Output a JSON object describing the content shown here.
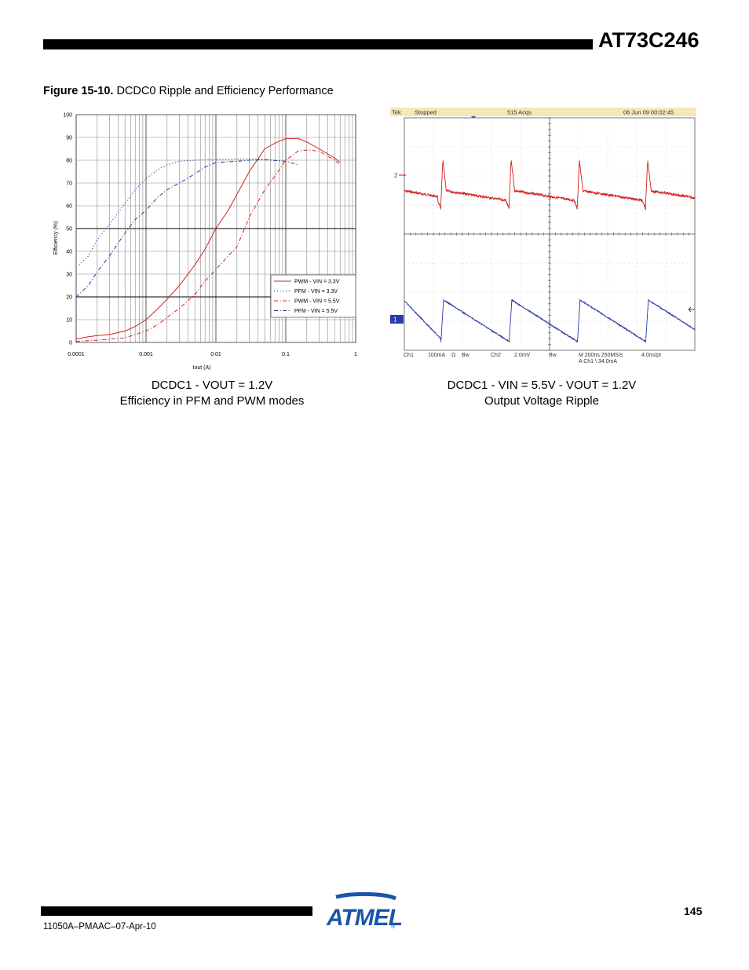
{
  "header": {
    "title": "AT73C246"
  },
  "figure": {
    "label": "Figure 15-10.",
    "title": "DCDC0 Ripple and Efficiency Performance",
    "left_caption": [
      "DCDC1 - VOUT = 1.2V",
      "Efficiency in PFM and PWM modes"
    ],
    "right_caption": [
      "DCDC1 - VIN = 5.5V - VOUT = 1.2V",
      "Output Voltage Ripple"
    ]
  },
  "chart_data": [
    {
      "type": "line",
      "title": "",
      "xlabel": "Iout (A)",
      "ylabel": "Efficiency (%)",
      "x_scale": "log",
      "xlim": [
        0.0001,
        1
      ],
      "ylim": [
        0,
        100
      ],
      "x_tick_labels": [
        "0.0001",
        "0.001",
        "0.01",
        "0.1",
        "1"
      ],
      "y_tick_labels": [
        "0",
        "10",
        "20",
        "30",
        "40",
        "50",
        "60",
        "70",
        "80",
        "90",
        "100"
      ],
      "grid": true,
      "legend_position": "bottom-right",
      "series": [
        {
          "name": "PWM - VIN = 3.3V",
          "color": "#d42020",
          "dash": "solid",
          "x": [
            0.0001,
            0.00015,
            0.0002,
            0.0003,
            0.0005,
            0.0007,
            0.001,
            0.0015,
            0.002,
            0.003,
            0.005,
            0.007,
            0.01,
            0.015,
            0.02,
            0.03,
            0.05,
            0.07,
            0.1,
            0.15,
            0.2,
            0.3,
            0.5,
            0.6
          ],
          "y": [
            1.5,
            2.5,
            3,
            3.5,
            5,
            7,
            10,
            15,
            19,
            25,
            34,
            41,
            50,
            58,
            65,
            75,
            85,
            87.5,
            89.5,
            89.5,
            88,
            85,
            81,
            79
          ]
        },
        {
          "name": "PFM - VIN = 3.3V",
          "color": "#2a3a9a",
          "dash": "dot",
          "x": [
            0.00011,
            0.00015,
            0.0002,
            0.0003,
            0.0005,
            0.0007,
            0.001,
            0.0015,
            0.002,
            0.003,
            0.005,
            0.007,
            0.01,
            0.02,
            0.03,
            0.05,
            0.1
          ],
          "y": [
            34,
            38,
            45,
            52,
            61,
            67,
            72,
            76,
            78,
            79.5,
            80,
            80.2,
            80.3,
            80.5,
            80.5,
            80.4,
            79.5
          ]
        },
        {
          "name": "PWM - VIN = 5.5V",
          "color": "#d42020",
          "dash": "dashdot",
          "x": [
            0.0001,
            0.0002,
            0.0005,
            0.001,
            0.0015,
            0.002,
            0.003,
            0.005,
            0.007,
            0.01,
            0.015,
            0.02,
            0.03,
            0.05,
            0.07,
            0.1,
            0.15,
            0.2,
            0.3,
            0.5,
            0.6
          ],
          "y": [
            0.5,
            1,
            2,
            5,
            8,
            11,
            15,
            21,
            27,
            32,
            38,
            42,
            55,
            67,
            73,
            80,
            84,
            84.5,
            84,
            80,
            78
          ]
        },
        {
          "name": "PFM - VIN = 5.5V",
          "color": "#2a3a9a",
          "dash": "dashdot",
          "x": [
            0.0001,
            0.00015,
            0.0002,
            0.0003,
            0.0005,
            0.0007,
            0.001,
            0.0015,
            0.002,
            0.003,
            0.005,
            0.007,
            0.01,
            0.02,
            0.03,
            0.05,
            0.1,
            0.15
          ],
          "y": [
            20,
            25,
            31,
            38,
            48,
            54,
            58,
            64,
            67,
            70,
            74,
            77,
            79,
            79.5,
            80,
            80.2,
            79.5,
            78
          ]
        }
      ]
    },
    {
      "type": "line",
      "title": "",
      "status": {
        "brand": "Tek",
        "state": "Stopped",
        "acqs": "515 Acqs",
        "timestamp": "06 Jun 09 00:02:45"
      },
      "channel_markers": [
        "2",
        "1"
      ],
      "readout_line1": [
        "Ch1",
        "100mA",
        "Ω",
        "Bw",
        "Ch2",
        "2.0mV",
        "Bw",
        "M 200ns 250MS/s",
        "4.0ns/pt"
      ],
      "readout_line2": "A  Ch1  \\  34.0mA",
      "grid": {
        "divisions_x": 10,
        "divisions_y": 8
      },
      "series": [
        {
          "name": "Ch2",
          "color": "#d42020",
          "shape": "ripple-spikes",
          "period_ns": 470,
          "start_ns": 250
        },
        {
          "name": "Ch1",
          "color": "#2a3aa8",
          "shape": "sawtooth",
          "period_ns": 470,
          "start_ns": 270
        }
      ]
    }
  ],
  "footer": {
    "doc_id": "11050A–PMAAC–07-Apr-10",
    "page": "145",
    "logo_text": "ATMEL"
  }
}
